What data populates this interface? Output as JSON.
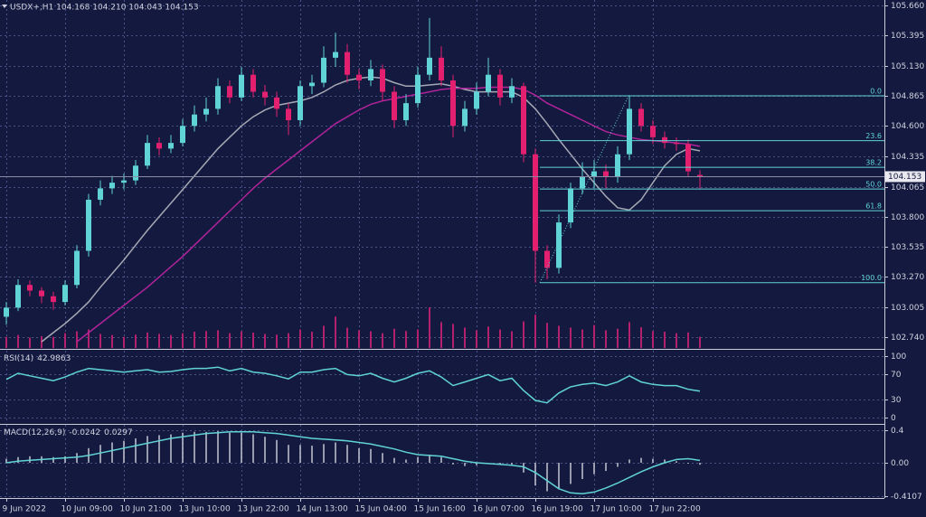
{
  "chart_data": [
    {
      "type": "candlestick",
      "header": "USDX+,H1 104.168 104.210 104.043 104.153",
      "categories": [
        "9 Jun 2022",
        null,
        null,
        null,
        null,
        "10 Jun 09:00",
        null,
        null,
        null,
        null,
        "10 Jun 21:00",
        null,
        null,
        null,
        null,
        "13 Jun 10:00",
        null,
        null,
        null,
        null,
        "13 Jun 22:00",
        null,
        null,
        null,
        null,
        "14 Jun 13:00",
        null,
        null,
        null,
        null,
        "15 Jun 04:00",
        null,
        null,
        null,
        null,
        "15 Jun 16:00",
        null,
        null,
        null,
        null,
        "16 Jun 07:00",
        null,
        null,
        null,
        null,
        "16 Jun 19:00",
        null,
        null,
        null,
        null,
        "17 Jun 10:00",
        null,
        null,
        null,
        null,
        "17 Jun 22:00",
        null,
        null,
        null,
        null
      ],
      "open": [
        102.92,
        103.0,
        103.2,
        103.15,
        103.1,
        103.05,
        103.2,
        103.5,
        103.95,
        104.05,
        104.1,
        104.12,
        104.25,
        104.45,
        104.4,
        104.45,
        104.6,
        104.7,
        104.75,
        104.95,
        104.85,
        105.05,
        104.9,
        104.85,
        104.75,
        104.65,
        104.95,
        104.98,
        105.2,
        105.25,
        105.05,
        105.0,
        105.1,
        104.9,
        104.65,
        104.8,
        105.05,
        105.2,
        105.0,
        104.6,
        104.75,
        104.9,
        105.05,
        104.85,
        104.95,
        104.35,
        103.5,
        103.35,
        103.75,
        104.05,
        104.15,
        104.2,
        104.15,
        104.35,
        104.75,
        104.6,
        104.5,
        104.45,
        104.44,
        104.168
      ],
      "high": [
        103.05,
        103.25,
        103.24,
        103.18,
        103.14,
        103.24,
        103.55,
        104.0,
        104.12,
        104.16,
        104.18,
        104.3,
        104.52,
        104.5,
        104.52,
        104.66,
        104.78,
        104.85,
        105.02,
        105.0,
        105.12,
        105.1,
        104.96,
        104.9,
        104.8,
        105.0,
        105.05,
        105.3,
        105.42,
        105.32,
        105.1,
        105.18,
        105.14,
        104.95,
        104.88,
        105.12,
        105.55,
        105.3,
        105.05,
        104.82,
        104.98,
        105.2,
        105.1,
        105.02,
        104.98,
        104.4,
        103.55,
        103.82,
        104.1,
        104.28,
        104.3,
        104.26,
        104.42,
        104.87,
        104.8,
        104.65,
        104.55,
        104.5,
        104.48,
        104.21
      ],
      "low": [
        102.85,
        102.97,
        103.1,
        103.04,
        102.98,
        103.02,
        103.17,
        103.45,
        103.9,
        104.0,
        104.04,
        104.08,
        104.22,
        104.34,
        104.36,
        104.42,
        104.55,
        104.64,
        104.7,
        104.8,
        104.82,
        104.85,
        104.78,
        104.68,
        104.52,
        104.6,
        104.88,
        104.94,
        105.12,
        104.98,
        104.92,
        104.95,
        104.82,
        104.58,
        104.6,
        104.76,
        105.0,
        104.95,
        104.5,
        104.55,
        104.7,
        104.86,
        104.78,
        104.8,
        104.28,
        103.22,
        103.25,
        103.3,
        103.7,
        104.0,
        104.05,
        104.05,
        104.1,
        104.3,
        104.55,
        104.44,
        104.4,
        104.38,
        104.15,
        104.043
      ],
      "close": [
        103.0,
        103.2,
        103.15,
        103.1,
        103.05,
        103.2,
        103.5,
        103.95,
        104.05,
        104.1,
        104.12,
        104.25,
        104.45,
        104.4,
        104.45,
        104.6,
        104.7,
        104.75,
        104.95,
        104.85,
        105.05,
        104.9,
        104.85,
        104.75,
        104.65,
        104.95,
        104.98,
        105.2,
        105.25,
        105.05,
        105.0,
        105.1,
        104.9,
        104.65,
        104.8,
        105.05,
        105.2,
        105.0,
        104.6,
        104.75,
        104.9,
        105.05,
        104.85,
        104.95,
        104.35,
        103.5,
        103.35,
        103.75,
        104.05,
        104.15,
        104.2,
        104.15,
        104.35,
        104.75,
        104.6,
        104.5,
        104.45,
        104.44,
        104.2,
        104.153
      ],
      "up_color": "#5fd3d6",
      "down_color": "#e2206f",
      "series": [
        {
          "color": "#a6a8b4",
          "values": [
            null,
            null,
            null,
            102.7,
            102.78,
            102.86,
            102.95,
            103.05,
            103.18,
            103.3,
            103.42,
            103.55,
            103.68,
            103.8,
            103.92,
            104.04,
            104.16,
            104.28,
            104.4,
            104.5,
            104.6,
            104.68,
            104.74,
            104.78,
            104.8,
            104.82,
            104.85,
            104.9,
            104.96,
            105.0,
            105.02,
            105.03,
            105.02,
            104.98,
            104.95,
            104.95,
            104.96,
            104.97,
            104.95,
            104.92,
            104.9,
            104.9,
            104.9,
            104.9,
            104.85,
            104.75,
            104.62,
            104.48,
            104.35,
            104.22,
            104.1,
            103.98,
            103.88,
            103.86,
            103.95,
            104.1,
            104.25,
            104.35,
            104.4,
            104.38
          ]
        },
        {
          "color": "#b0239a",
          "values": [
            null,
            null,
            null,
            null,
            null,
            null,
            102.7,
            102.78,
            102.86,
            102.94,
            103.02,
            103.1,
            103.18,
            103.27,
            103.36,
            103.45,
            103.55,
            103.65,
            103.75,
            103.85,
            103.95,
            104.05,
            104.14,
            104.22,
            104.3,
            104.38,
            104.46,
            104.54,
            104.62,
            104.68,
            104.74,
            104.79,
            104.82,
            104.84,
            104.86,
            104.88,
            104.9,
            104.92,
            104.93,
            104.93,
            104.93,
            104.94,
            104.94,
            104.94,
            104.92,
            104.87,
            104.8,
            104.75,
            104.7,
            104.65,
            104.6,
            104.55,
            104.52,
            104.5,
            104.48,
            104.47,
            104.46,
            104.45,
            104.44,
            104.42
          ]
        }
      ],
      "volume": [
        30,
        35,
        28,
        32,
        30,
        40,
        45,
        50,
        38,
        35,
        30,
        36,
        42,
        38,
        35,
        40,
        44,
        46,
        48,
        40,
        45,
        42,
        38,
        36,
        40,
        50,
        44,
        60,
        85,
        55,
        48,
        45,
        40,
        52,
        46,
        50,
        110,
        70,
        65,
        55,
        48,
        58,
        50,
        45,
        72,
        90,
        68,
        60,
        55,
        50,
        62,
        48,
        52,
        70,
        56,
        46,
        44,
        40,
        42,
        30
      ],
      "volume_color": "#b3206b",
      "ylim": [
        102.645,
        105.708
      ],
      "yticks": [
        {
          "value": 105.66,
          "label": "105.660"
        },
        105.395,
        {
          "value": 105.13,
          "label": "105.130"
        },
        104.865,
        {
          "value": 104.6,
          "label": "104.600"
        },
        104.335,
        104.065,
        {
          "value": 103.8,
          "label": "103.800"
        },
        103.535,
        {
          "value": 103.27,
          "label": "103.270"
        },
        103.005,
        {
          "value": 102.74,
          "label": "102.740"
        }
      ],
      "grid": true,
      "current_price": 104.153,
      "fib_color": "#5fd3d6",
      "fib_levels": [
        {
          "label": "0.0",
          "price": 104.865
        },
        {
          "label": "23.6",
          "price": 104.47
        },
        {
          "label": "38.2",
          "price": 104.235
        },
        {
          "label": "50.0",
          "price": 104.044
        },
        {
          "label": "61.8",
          "price": 103.853
        },
        {
          "label": "100.0",
          "price": 103.22
        }
      ]
    },
    {
      "type": "line",
      "name": "RSI(14)",
      "color": "#5fd3d6",
      "values": [
        62,
        72,
        68,
        64,
        60,
        66,
        74,
        80,
        78,
        76,
        74,
        76,
        78,
        74,
        75,
        78,
        80,
        80,
        82,
        76,
        80,
        74,
        72,
        68,
        63,
        74,
        74,
        78,
        80,
        70,
        68,
        72,
        64,
        58,
        64,
        72,
        76,
        66,
        52,
        58,
        64,
        70,
        60,
        64,
        44,
        28,
        24,
        40,
        50,
        54,
        56,
        52,
        58,
        68,
        58,
        54,
        52,
        52,
        46,
        42.9863
      ],
      "ylim": [
        -8.8,
        108.8
      ],
      "yticks": [
        100,
        70,
        30,
        0
      ],
      "grid": true
    },
    {
      "type": "macd",
      "name": "MACD(12,26,9)",
      "histogram_color": "#c4c6d2",
      "signal_color": "#5fd3d6",
      "histogram": [
        0.05,
        0.07,
        0.08,
        0.08,
        0.07,
        0.08,
        0.12,
        0.18,
        0.22,
        0.25,
        0.27,
        0.3,
        0.33,
        0.34,
        0.35,
        0.37,
        0.38,
        0.38,
        0.39,
        0.37,
        0.37,
        0.35,
        0.32,
        0.28,
        0.22,
        0.22,
        0.21,
        0.23,
        0.25,
        0.22,
        0.18,
        0.17,
        0.12,
        0.06,
        0.04,
        0.07,
        0.1,
        0.07,
        -0.02,
        -0.04,
        -0.03,
        0.0,
        -0.02,
        -0.02,
        -0.12,
        -0.28,
        -0.35,
        -0.32,
        -0.26,
        -0.2,
        -0.14,
        -0.1,
        -0.05,
        0.04,
        0.06,
        0.05,
        0.04,
        0.02,
        -0.01,
        -0.0242
      ],
      "signal": [
        0.0,
        0.02,
        0.03,
        0.04,
        0.05,
        0.06,
        0.07,
        0.09,
        0.12,
        0.15,
        0.18,
        0.21,
        0.24,
        0.27,
        0.3,
        0.32,
        0.34,
        0.36,
        0.37,
        0.38,
        0.38,
        0.38,
        0.37,
        0.36,
        0.34,
        0.32,
        0.3,
        0.29,
        0.28,
        0.27,
        0.25,
        0.23,
        0.2,
        0.17,
        0.13,
        0.1,
        0.09,
        0.08,
        0.05,
        0.02,
        0.0,
        -0.01,
        -0.02,
        -0.03,
        -0.05,
        -0.12,
        -0.22,
        -0.32,
        -0.37,
        -0.38,
        -0.36,
        -0.31,
        -0.25,
        -0.18,
        -0.11,
        -0.05,
        0.0,
        0.04,
        0.05,
        0.0297
      ],
      "ylim": [
        -0.422,
        0.467
      ],
      "yticks": [
        0.4,
        {
          "value": 0,
          "label": "0.00"
        },
        -0.4107
      ],
      "grid": true
    }
  ]
}
